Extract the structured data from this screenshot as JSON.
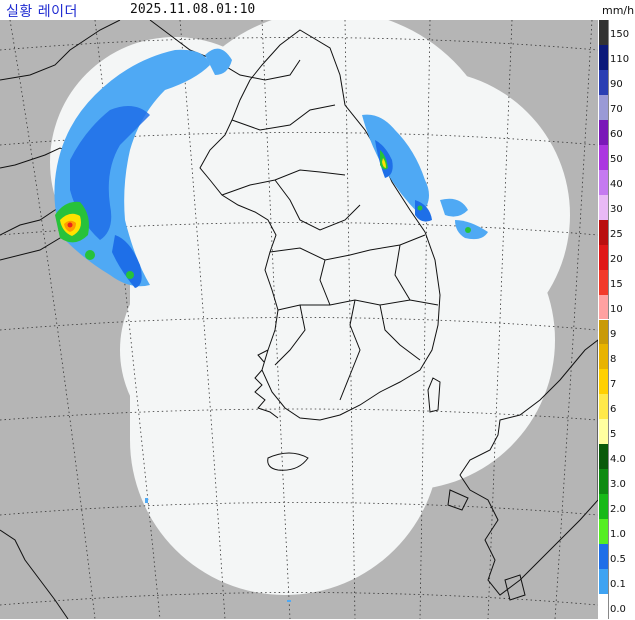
{
  "header": {
    "title": "실황 레이더",
    "timestamp": "2025.11.08.01:10",
    "unit": "mm/h"
  },
  "map": {
    "outside_coverage_color": "#b5b5b5",
    "coverage_color": "#f4f6f6",
    "grid_color": "#333333",
    "coastline_color": "#111111",
    "precipitation_colors": {
      "light_blue": "#4fa9f4",
      "blue": "#1e6fe8",
      "green": "#27c23b",
      "yellow": "#ffe200",
      "orange": "#ff9b00",
      "red": "#e8241c"
    }
  },
  "legend": {
    "items": [
      {
        "label": "150",
        "color": "#333333"
      },
      {
        "label": "110",
        "color": "#0c1a7a"
      },
      {
        "label": "90",
        "color": "#2b3fb3"
      },
      {
        "label": "70",
        "color": "#9a9ad6"
      },
      {
        "label": "60",
        "color": "#7a18b8"
      },
      {
        "label": "50",
        "color": "#ab36e0"
      },
      {
        "label": "40",
        "color": "#c57af0"
      },
      {
        "label": "30",
        "color": "#e9b9f6"
      },
      {
        "label": "25",
        "color": "#ba0f0f"
      },
      {
        "label": "20",
        "color": "#e01818"
      },
      {
        "label": "15",
        "color": "#f23a2a"
      },
      {
        "label": "10",
        "color": "#ffa1a1"
      },
      {
        "label": "9",
        "color": "#c99a08"
      },
      {
        "label": "8",
        "color": "#e8b300"
      },
      {
        "label": "7",
        "color": "#ffd000"
      },
      {
        "label": "6",
        "color": "#ffe94a"
      },
      {
        "label": "5",
        "color": "#ffffa0"
      },
      {
        "label": "4.0",
        "color": "#0a5a0a"
      },
      {
        "label": "3.0",
        "color": "#0f8a12"
      },
      {
        "label": "2.0",
        "color": "#18b918"
      },
      {
        "label": "1.0",
        "color": "#55ee22"
      },
      {
        "label": "0.5",
        "color": "#1e6fe8"
      },
      {
        "label": "0.1",
        "color": "#3fa3f2"
      },
      {
        "label": "0.0",
        "color": "#ffffff"
      }
    ]
  }
}
